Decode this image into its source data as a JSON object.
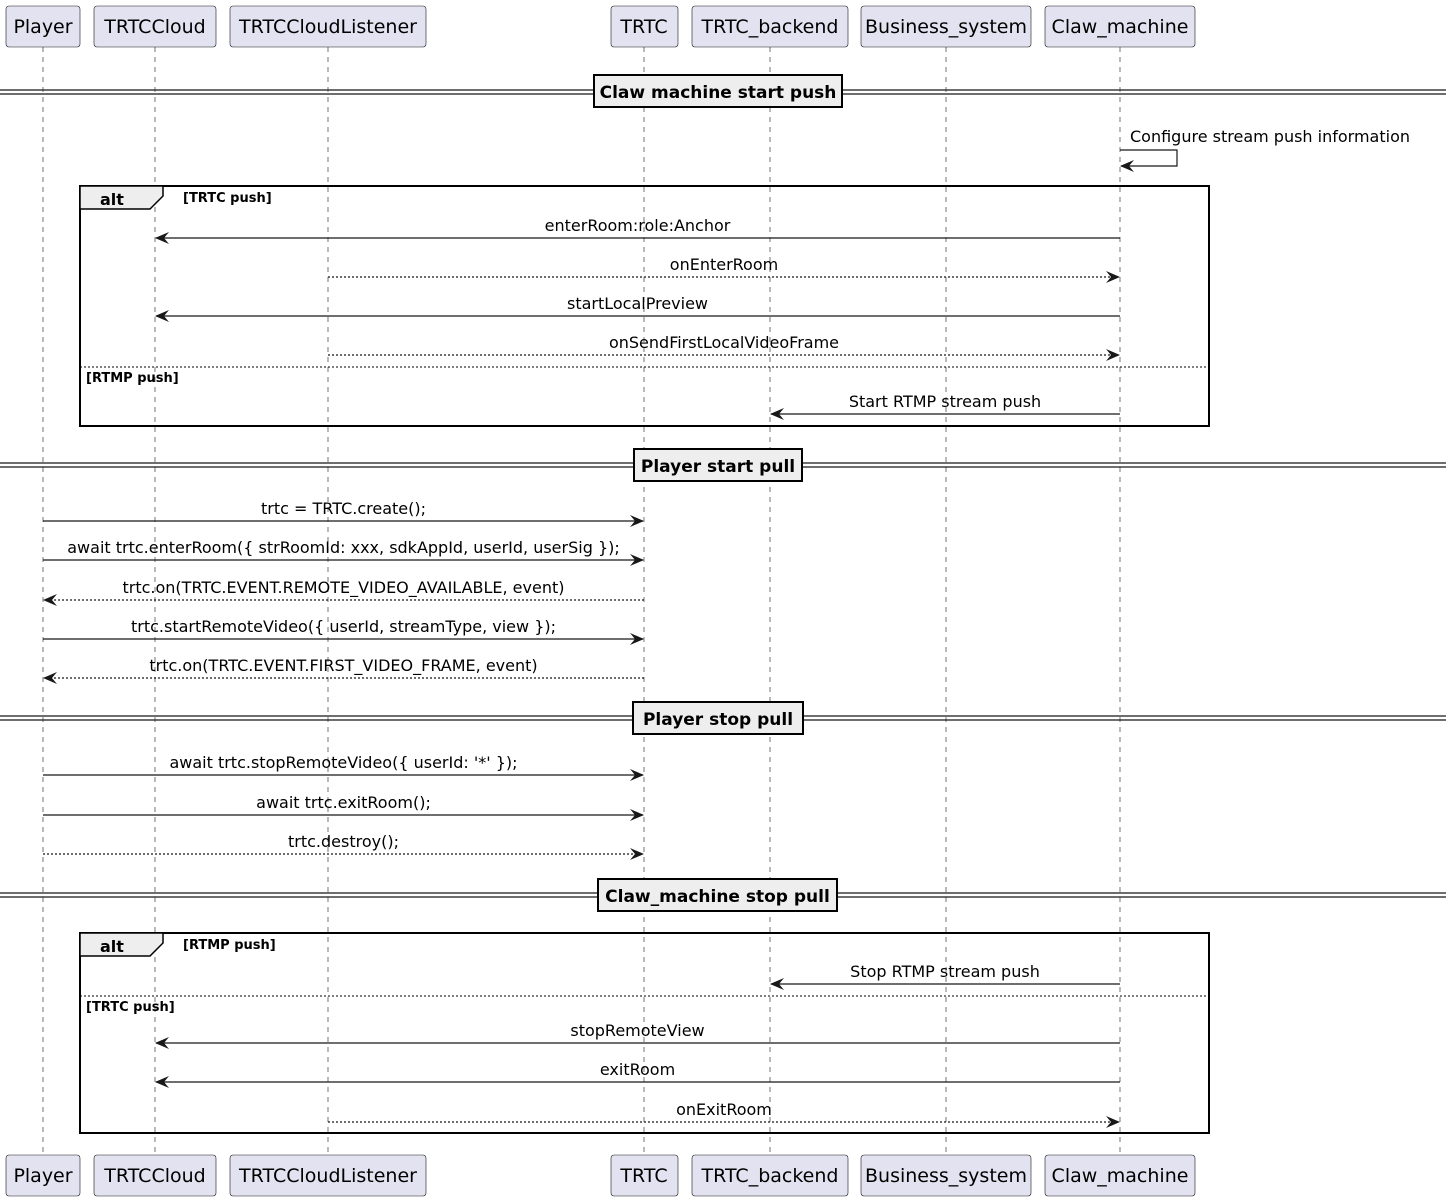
{
  "participants": [
    "Player",
    "TRTCCloud",
    "TRTCCloudListener",
    "TRTC",
    "TRTC_backend",
    "Business_system",
    "Claw_machine"
  ],
  "colors": {
    "participant_fill": "#e2e2f0",
    "divider_fill": "#eeeeee",
    "line": "#181818"
  },
  "dividers": [
    "Claw machine start push",
    "Player start pull",
    "Player stop pull",
    "Claw_machine stop pull"
  ],
  "self_message": {
    "participant": "Claw_machine",
    "label": "Configure stream push information"
  },
  "alt_frames": [
    {
      "keyword": "alt",
      "guards": [
        "[TRTC push]",
        "[RTMP push]"
      ]
    },
    {
      "keyword": "alt",
      "guards": [
        "[RTMP push]",
        "[TRTC push]"
      ]
    }
  ],
  "messages": [
    {
      "from": "Claw_machine",
      "to": "TRTCCloud",
      "label": "enterRoom:role:Anchor",
      "dashed": false
    },
    {
      "from": "TRTCCloudListener",
      "to": "Claw_machine",
      "label": "onEnterRoom",
      "dashed": true
    },
    {
      "from": "Claw_machine",
      "to": "TRTCCloud",
      "label": "startLocalPreview",
      "dashed": false
    },
    {
      "from": "TRTCCloudListener",
      "to": "Claw_machine",
      "label": "onSendFirstLocalVideoFrame",
      "dashed": true
    },
    {
      "from": "Claw_machine",
      "to": "TRTC_backend",
      "label": "Start RTMP stream push",
      "dashed": false
    },
    {
      "from": "Player",
      "to": "TRTC",
      "label": "trtc = TRTC.create();",
      "dashed": false
    },
    {
      "from": "Player",
      "to": "TRTC",
      "label": "await trtc.enterRoom({ strRoomId: xxx, sdkAppId, userId, userSig });",
      "dashed": false
    },
    {
      "from": "TRTC",
      "to": "Player",
      "label": "trtc.on(TRTC.EVENT.REMOTE_VIDEO_AVAILABLE, event)",
      "dashed": true
    },
    {
      "from": "Player",
      "to": "TRTC",
      "label": "trtc.startRemoteVideo({ userId, streamType, view });",
      "dashed": false
    },
    {
      "from": "TRTC",
      "to": "Player",
      "label": "trtc.on(TRTC.EVENT.FIRST_VIDEO_FRAME, event)",
      "dashed": true
    },
    {
      "from": "Player",
      "to": "TRTC",
      "label": "await trtc.stopRemoteVideo({ userId: '*' });",
      "dashed": false
    },
    {
      "from": "Player",
      "to": "TRTC",
      "label": "await trtc.exitRoom();",
      "dashed": false
    },
    {
      "from": "Player",
      "to": "TRTC",
      "label": "trtc.destroy();",
      "dashed": true
    },
    {
      "from": "Claw_machine",
      "to": "TRTC_backend",
      "label": "Stop RTMP stream push",
      "dashed": false
    },
    {
      "from": "Claw_machine",
      "to": "TRTCCloud",
      "label": "stopRemoteView",
      "dashed": false
    },
    {
      "from": "Claw_machine",
      "to": "TRTCCloud",
      "label": "exitRoom",
      "dashed": false
    },
    {
      "from": "TRTCCloudListener",
      "to": "Claw_machine",
      "label": "onExitRoom",
      "dashed": true
    }
  ]
}
